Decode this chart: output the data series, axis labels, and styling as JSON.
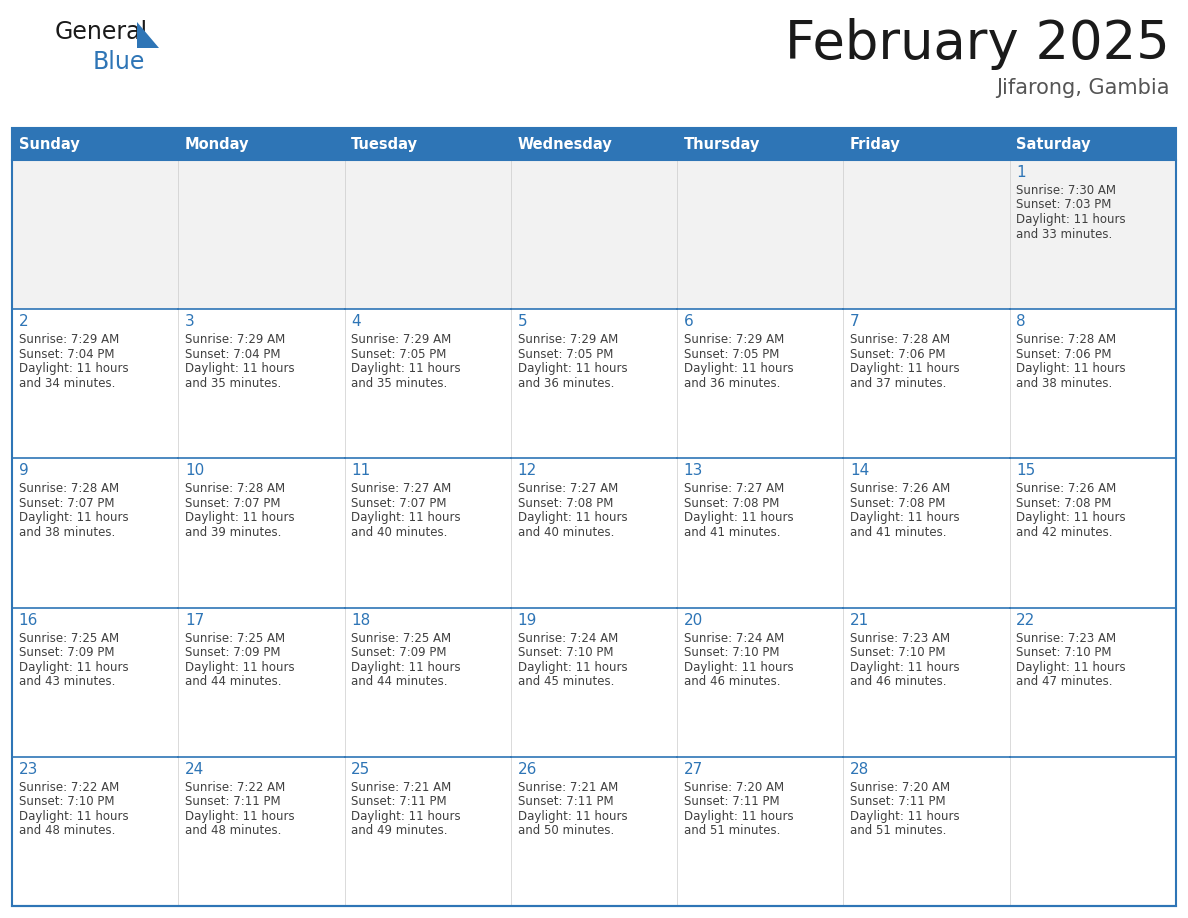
{
  "title": "February 2025",
  "subtitle": "Jifarong, Gambia",
  "header_bg": "#2E75B6",
  "header_text_color": "#FFFFFF",
  "cell_bg": "#FFFFFF",
  "cell_row1_bg": "#F2F2F2",
  "cell_border_color": "#2E75B6",
  "day_number_color": "#2E75B6",
  "cell_text_color": "#404040",
  "days_of_week": [
    "Sunday",
    "Monday",
    "Tuesday",
    "Wednesday",
    "Thursday",
    "Friday",
    "Saturday"
  ],
  "calendar_data": [
    [
      null,
      null,
      null,
      null,
      null,
      null,
      {
        "day": "1",
        "sunrise": "7:30 AM",
        "sunset": "7:03 PM",
        "daylight_h": "11 hours",
        "daylight_m": "and 33 minutes."
      }
    ],
    [
      {
        "day": "2",
        "sunrise": "7:29 AM",
        "sunset": "7:04 PM",
        "daylight_h": "11 hours",
        "daylight_m": "and 34 minutes."
      },
      {
        "day": "3",
        "sunrise": "7:29 AM",
        "sunset": "7:04 PM",
        "daylight_h": "11 hours",
        "daylight_m": "and 35 minutes."
      },
      {
        "day": "4",
        "sunrise": "7:29 AM",
        "sunset": "7:05 PM",
        "daylight_h": "11 hours",
        "daylight_m": "and 35 minutes."
      },
      {
        "day": "5",
        "sunrise": "7:29 AM",
        "sunset": "7:05 PM",
        "daylight_h": "11 hours",
        "daylight_m": "and 36 minutes."
      },
      {
        "day": "6",
        "sunrise": "7:29 AM",
        "sunset": "7:05 PM",
        "daylight_h": "11 hours",
        "daylight_m": "and 36 minutes."
      },
      {
        "day": "7",
        "sunrise": "7:28 AM",
        "sunset": "7:06 PM",
        "daylight_h": "11 hours",
        "daylight_m": "and 37 minutes."
      },
      {
        "day": "8",
        "sunrise": "7:28 AM",
        "sunset": "7:06 PM",
        "daylight_h": "11 hours",
        "daylight_m": "and 38 minutes."
      }
    ],
    [
      {
        "day": "9",
        "sunrise": "7:28 AM",
        "sunset": "7:07 PM",
        "daylight_h": "11 hours",
        "daylight_m": "and 38 minutes."
      },
      {
        "day": "10",
        "sunrise": "7:28 AM",
        "sunset": "7:07 PM",
        "daylight_h": "11 hours",
        "daylight_m": "and 39 minutes."
      },
      {
        "day": "11",
        "sunrise": "7:27 AM",
        "sunset": "7:07 PM",
        "daylight_h": "11 hours",
        "daylight_m": "and 40 minutes."
      },
      {
        "day": "12",
        "sunrise": "7:27 AM",
        "sunset": "7:08 PM",
        "daylight_h": "11 hours",
        "daylight_m": "and 40 minutes."
      },
      {
        "day": "13",
        "sunrise": "7:27 AM",
        "sunset": "7:08 PM",
        "daylight_h": "11 hours",
        "daylight_m": "and 41 minutes."
      },
      {
        "day": "14",
        "sunrise": "7:26 AM",
        "sunset": "7:08 PM",
        "daylight_h": "11 hours",
        "daylight_m": "and 41 minutes."
      },
      {
        "day": "15",
        "sunrise": "7:26 AM",
        "sunset": "7:08 PM",
        "daylight_h": "11 hours",
        "daylight_m": "and 42 minutes."
      }
    ],
    [
      {
        "day": "16",
        "sunrise": "7:25 AM",
        "sunset": "7:09 PM",
        "daylight_h": "11 hours",
        "daylight_m": "and 43 minutes."
      },
      {
        "day": "17",
        "sunrise": "7:25 AM",
        "sunset": "7:09 PM",
        "daylight_h": "11 hours",
        "daylight_m": "and 44 minutes."
      },
      {
        "day": "18",
        "sunrise": "7:25 AM",
        "sunset": "7:09 PM",
        "daylight_h": "11 hours",
        "daylight_m": "and 44 minutes."
      },
      {
        "day": "19",
        "sunrise": "7:24 AM",
        "sunset": "7:10 PM",
        "daylight_h": "11 hours",
        "daylight_m": "and 45 minutes."
      },
      {
        "day": "20",
        "sunrise": "7:24 AM",
        "sunset": "7:10 PM",
        "daylight_h": "11 hours",
        "daylight_m": "and 46 minutes."
      },
      {
        "day": "21",
        "sunrise": "7:23 AM",
        "sunset": "7:10 PM",
        "daylight_h": "11 hours",
        "daylight_m": "and 46 minutes."
      },
      {
        "day": "22",
        "sunrise": "7:23 AM",
        "sunset": "7:10 PM",
        "daylight_h": "11 hours",
        "daylight_m": "and 47 minutes."
      }
    ],
    [
      {
        "day": "23",
        "sunrise": "7:22 AM",
        "sunset": "7:10 PM",
        "daylight_h": "11 hours",
        "daylight_m": "and 48 minutes."
      },
      {
        "day": "24",
        "sunrise": "7:22 AM",
        "sunset": "7:11 PM",
        "daylight_h": "11 hours",
        "daylight_m": "and 48 minutes."
      },
      {
        "day": "25",
        "sunrise": "7:21 AM",
        "sunset": "7:11 PM",
        "daylight_h": "11 hours",
        "daylight_m": "and 49 minutes."
      },
      {
        "day": "26",
        "sunrise": "7:21 AM",
        "sunset": "7:11 PM",
        "daylight_h": "11 hours",
        "daylight_m": "and 50 minutes."
      },
      {
        "day": "27",
        "sunrise": "7:20 AM",
        "sunset": "7:11 PM",
        "daylight_h": "11 hours",
        "daylight_m": "and 51 minutes."
      },
      {
        "day": "28",
        "sunrise": "7:20 AM",
        "sunset": "7:11 PM",
        "daylight_h": "11 hours",
        "daylight_m": "and 51 minutes."
      },
      null
    ]
  ]
}
